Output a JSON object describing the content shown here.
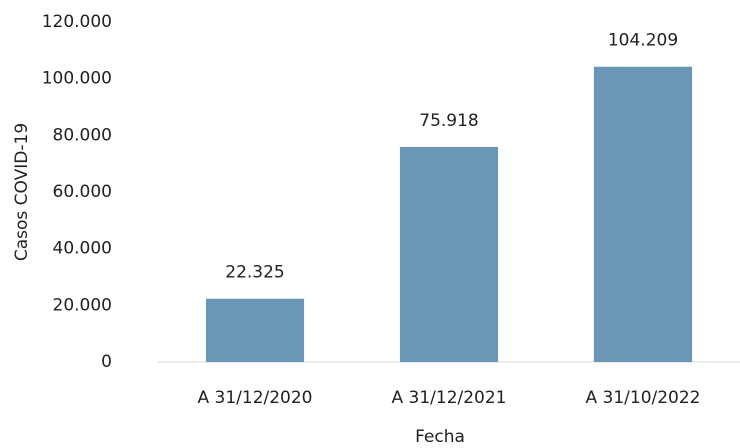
{
  "chart_data": {
    "type": "bar",
    "xlabel": "Fecha",
    "ylabel": "Casos COVID-19",
    "categories": [
      "A 31/12/2020",
      "A 31/12/2021",
      "A 31/10/2022"
    ],
    "values": [
      22325,
      75918,
      104209
    ],
    "value_labels": [
      "22.325",
      "75.918",
      "104.209"
    ],
    "color": "#6a97b8",
    "ylim": [
      0,
      120000
    ],
    "yticks": [
      0,
      {
        "value": 20000,
        "label": "20.000"
      },
      {
        "value": 40000,
        "label": "40.000"
      },
      {
        "value": 60000,
        "label": "60.000"
      },
      {
        "value": 80000,
        "label": "80.000"
      },
      {
        "value": 100000,
        "label": "100.000"
      },
      {
        "value": 120000,
        "label": "120.000"
      }
    ],
    "grid": false
  }
}
